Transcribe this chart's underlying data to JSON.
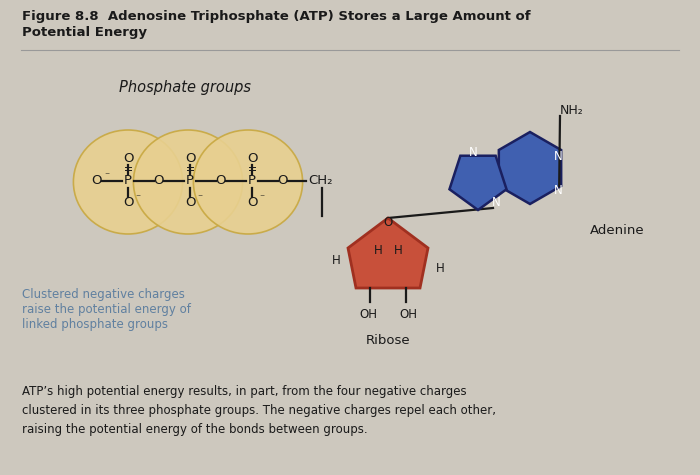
{
  "title_line1": "Figure 8.8  Adenosine Triphosphate (ATP) Stores a Large Amount of",
  "title_line2": "Potential Energy",
  "bg_color": "#cdc8be",
  "phosphate_group_label": "Phosphate groups",
  "phosphate_circle_color": "#e8d090",
  "phosphate_circle_edge": "#c8a840",
  "ribose_color": "#c8503a",
  "ribose_dark": "#a03020",
  "adenine_color": "#4060b0",
  "adenine_edge": "#1a2060",
  "clustered_text_color": "#6080a0",
  "dark_text": "#1a1a1a",
  "footer_text": "ATP’s high potential energy results, in part, from the four negative charges\nclustered in its three phosphate groups. The negative charges repel each other,\nraising the potential energy of the bonds between groups."
}
